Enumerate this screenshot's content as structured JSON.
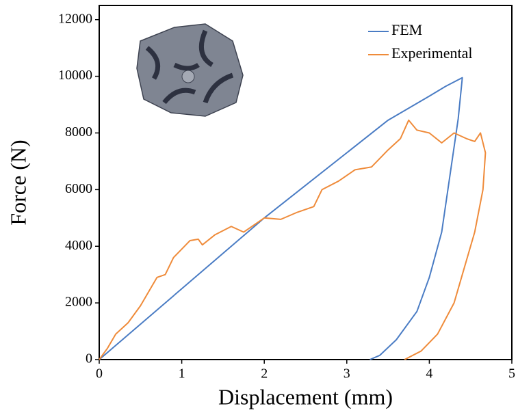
{
  "chart_data": {
    "type": "line",
    "x_label": "Displacement (mm)",
    "y_label": "Force (N)",
    "xlim": [
      0,
      5
    ],
    "ylim": [
      0,
      12500
    ],
    "xticks": [
      0,
      1,
      2,
      3,
      4,
      5
    ],
    "yticks": [
      0,
      2000,
      4000,
      6000,
      8000,
      10000,
      12000
    ],
    "legend": "upper right",
    "series": [
      {
        "name": "FEM",
        "color": "#4a7cc4",
        "x": [
          0,
          1,
          2,
          3,
          3.5,
          4,
          4.2,
          4.4,
          4.35,
          4.25,
          4.15,
          4.0,
          3.85,
          3.6,
          3.4,
          3.28
        ],
        "values": [
          0,
          2500,
          5000,
          7300,
          8450,
          9300,
          9650,
          9950,
          8500,
          6500,
          4500,
          2900,
          1700,
          700,
          150,
          0
        ]
      },
      {
        "name": "Experimental",
        "color": "#ef8b3a",
        "x": [
          0,
          0.1,
          0.2,
          0.35,
          0.5,
          0.7,
          0.8,
          0.9,
          1.0,
          1.1,
          1.2,
          1.25,
          1.4,
          1.6,
          1.75,
          2.0,
          2.2,
          2.4,
          2.6,
          2.7,
          2.9,
          3.1,
          3.3,
          3.5,
          3.65,
          3.75,
          3.85,
          4.0,
          4.15,
          4.3,
          4.45,
          4.55,
          4.62,
          4.68,
          4.65,
          4.55,
          4.4,
          4.3,
          4.1,
          3.9,
          3.7
        ],
        "values": [
          0,
          400,
          900,
          1300,
          1900,
          2900,
          3000,
          3600,
          3900,
          4200,
          4250,
          4050,
          4400,
          4700,
          4500,
          5000,
          4950,
          5200,
          5400,
          6000,
          6300,
          6700,
          6800,
          7400,
          7800,
          8450,
          8100,
          8000,
          7650,
          8000,
          7800,
          7700,
          8000,
          7300,
          6000,
          4500,
          3000,
          2000,
          900,
          300,
          0
        ]
      }
    ]
  }
}
